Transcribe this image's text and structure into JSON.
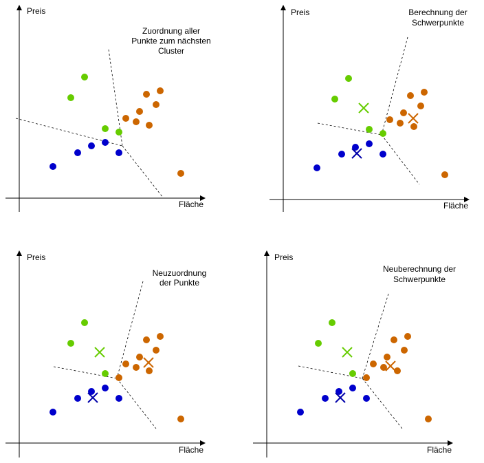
{
  "panels": [
    {
      "y_label": "Preis",
      "x_label": "Fläche",
      "caption": [
        "Zuordnung aller",
        "Punkte zum nächsten",
        "Cluster"
      ]
    },
    {
      "y_label": "Preis",
      "x_label": "Fläche",
      "caption": [
        "Berechnung der",
        "Schwerpunkte"
      ]
    },
    {
      "y_label": "Preis",
      "x_label": "Fläche",
      "caption": [
        "Neuzuordnung",
        "der Punkte"
      ]
    },
    {
      "y_label": "Preis",
      "x_label": "Fläche",
      "caption": [
        "Neuberechnung der",
        "Schwerpunkte"
      ]
    }
  ]
}
